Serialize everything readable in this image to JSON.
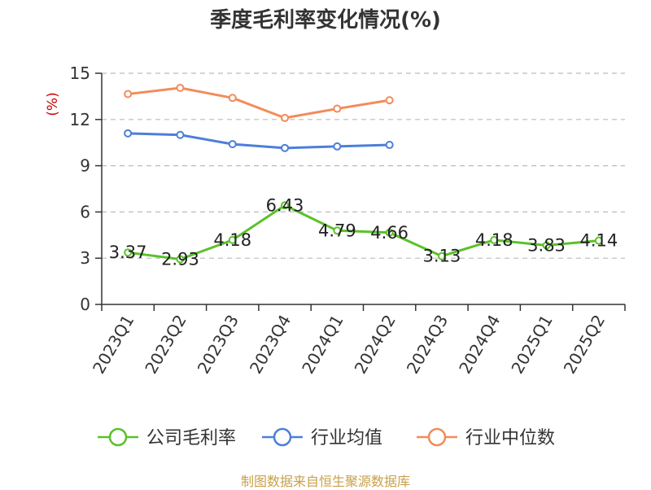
{
  "chart_data": {
    "type": "line",
    "title": "季度毛利率变化情况(%)",
    "ylabel": "(%)",
    "xlabel": "",
    "ylim": [
      0,
      15
    ],
    "yticks": [
      0,
      3,
      6,
      9,
      12,
      15
    ],
    "grid": true,
    "legend_position": "bottom",
    "categories": [
      "2023Q1",
      "2023Q2",
      "2023Q3",
      "2023Q4",
      "2024Q1",
      "2024Q2",
      "2024Q3",
      "2024Q4",
      "2025Q1",
      "2025Q2"
    ],
    "series": [
      {
        "name": "公司毛利率",
        "color": "#5ac229",
        "show_labels": true,
        "values": [
          3.37,
          2.93,
          4.18,
          6.43,
          4.79,
          4.66,
          3.13,
          4.18,
          3.83,
          4.14
        ]
      },
      {
        "name": "行业均值",
        "color": "#4c7fd9",
        "show_labels": false,
        "values": [
          11.1,
          11.0,
          10.4,
          10.15,
          10.25,
          10.35,
          null,
          null,
          null,
          null
        ]
      },
      {
        "name": "行业中位数",
        "color": "#f28c5a",
        "show_labels": false,
        "values": [
          13.65,
          14.05,
          13.4,
          12.1,
          12.7,
          13.25,
          null,
          null,
          null,
          null
        ]
      }
    ]
  },
  "footer": {
    "source": "制图数据来自恒生聚源数据库"
  }
}
